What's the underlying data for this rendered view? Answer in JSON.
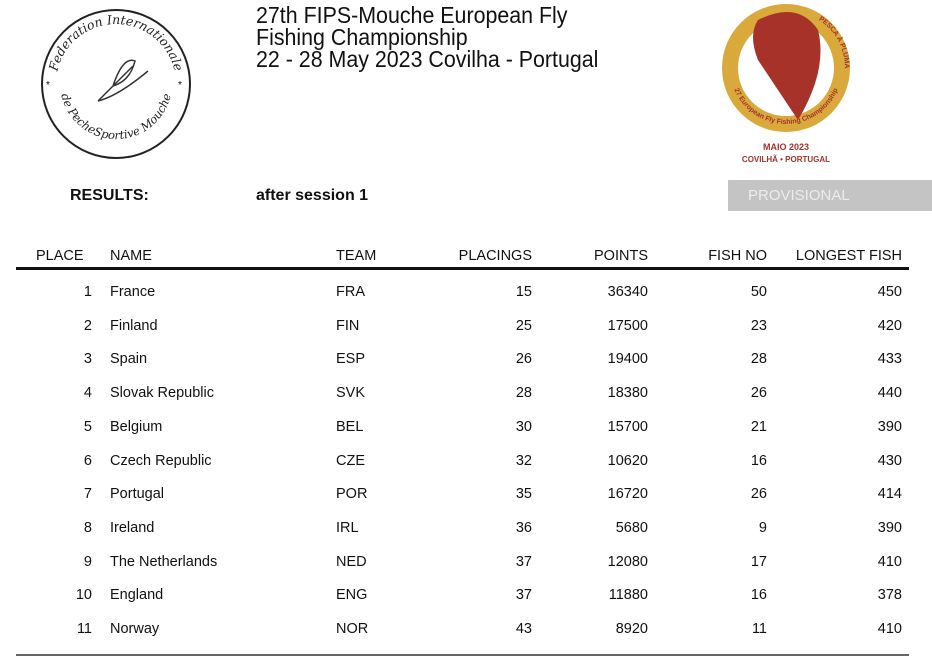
{
  "header": {
    "title_lines": [
      "27th FIPS-Mouche European Fly",
      "Fishing Championship",
      "22 - 28 May 2023 Covilha - Portugal"
    ],
    "left_logo_text": [
      "Federation Internationale",
      "de PecheSportive Mouche"
    ],
    "right_logo_text": [
      "27 European Fly Fishing Championship",
      "PESCA À PLUMA",
      "MAIO 2023",
      "COVILHÃ • PORTUGAL"
    ]
  },
  "results_label": "RESULTS:",
  "session_label": "after session 1",
  "status_badge": "PROVISIONAL",
  "columns": {
    "place": "PLACE",
    "name": "NAME",
    "team": "TEAM",
    "placings": "PLACINGS",
    "points": "POINTS",
    "fish_no": "FISH NO",
    "longest": "LONGEST FISH"
  },
  "rows": [
    {
      "place": "1",
      "name": "France",
      "team": "FRA",
      "placings": "15",
      "points": "36340",
      "fish_no": "50",
      "longest": "450"
    },
    {
      "place": "2",
      "name": "Finland",
      "team": "FIN",
      "placings": "25",
      "points": "17500",
      "fish_no": "23",
      "longest": "420"
    },
    {
      "place": "3",
      "name": "Spain",
      "team": "ESP",
      "placings": "26",
      "points": "19400",
      "fish_no": "28",
      "longest": "433"
    },
    {
      "place": "4",
      "name": "Slovak Republic",
      "team": "SVK",
      "placings": "28",
      "points": "18380",
      "fish_no": "26",
      "longest": "440"
    },
    {
      "place": "5",
      "name": "Belgium",
      "team": "BEL",
      "placings": "30",
      "points": "15700",
      "fish_no": "21",
      "longest": "390"
    },
    {
      "place": "6",
      "name": "Czech Republic",
      "team": "CZE",
      "placings": "32",
      "points": "10620",
      "fish_no": "16",
      "longest": "430"
    },
    {
      "place": "7",
      "name": "Portugal",
      "team": "POR",
      "placings": "35",
      "points": "16720",
      "fish_no": "26",
      "longest": "414"
    },
    {
      "place": "8",
      "name": "Ireland",
      "team": "IRL",
      "placings": "36",
      "points": "5680",
      "fish_no": "9",
      "longest": "390"
    },
    {
      "place": "9",
      "name": "The Netherlands",
      "team": "NED",
      "placings": "37",
      "points": "12080",
      "fish_no": "17",
      "longest": "410"
    },
    {
      "place": "10",
      "name": "England",
      "team": "ENG",
      "placings": "37",
      "points": "11880",
      "fish_no": "16",
      "longest": "378"
    },
    {
      "place": "11",
      "name": "Norway",
      "team": "NOR",
      "placings": "43",
      "points": "8920",
      "fish_no": "11",
      "longest": "410"
    }
  ]
}
